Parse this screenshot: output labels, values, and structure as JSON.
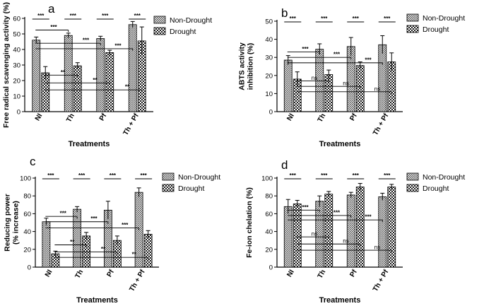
{
  "chart_data": [
    {
      "panel": "a",
      "type": "bar",
      "ylabel": "Free radical scavenging activity (%)",
      "xlabel": "Treatments",
      "ylim": [
        0,
        60
      ],
      "yticks": [
        0,
        10,
        20,
        30,
        40,
        50,
        60
      ],
      "categories": [
        "NI",
        "Th",
        "Pf",
        "Th + Pf"
      ],
      "series": [
        {
          "name": "Non-Drought",
          "values": [
            46,
            49,
            47,
            56
          ],
          "errors": [
            2,
            1.5,
            1.5,
            2
          ]
        },
        {
          "name": "Drought",
          "values": [
            25,
            29.5,
            38,
            45.5
          ],
          "errors": [
            4,
            2,
            1.5,
            9
          ]
        }
      ],
      "legend": [
        "Non-Drought",
        "Drought"
      ],
      "pair_sig": [
        "***",
        "***",
        "***",
        "***"
      ],
      "comparisons": [
        {
          "from": 0,
          "series": 0,
          "to": 1,
          "level": 52.5,
          "label": "***"
        },
        {
          "from": 0,
          "series": 0,
          "to": 2,
          "level": 44,
          "label": "***"
        },
        {
          "from": 0,
          "series": 0,
          "to": 3,
          "level": 40.5,
          "label": "***"
        },
        {
          "from": 0,
          "series": 1,
          "to": 1,
          "level": 23.5,
          "label": "**"
        },
        {
          "from": 0,
          "series": 1,
          "to": 2,
          "level": 18.5,
          "label": "**"
        },
        {
          "from": 0,
          "series": 1,
          "to": 3,
          "level": 14,
          "label": "**"
        }
      ]
    },
    {
      "panel": "b",
      "type": "bar",
      "ylabel": "ABTS activity inhibition (%)",
      "xlabel": "Treatments",
      "ylim": [
        0,
        50
      ],
      "yticks": [
        0,
        10,
        20,
        30,
        40,
        50
      ],
      "categories": [
        "NI",
        "Th",
        "Pf",
        "Th + Pf"
      ],
      "series": [
        {
          "name": "Non-Drought",
          "values": [
            28.5,
            34.5,
            36,
            37
          ],
          "errors": [
            2.5,
            3,
            5,
            5
          ]
        },
        {
          "name": "Drought",
          "values": [
            18,
            20.5,
            25.5,
            27.5
          ],
          "errors": [
            4,
            2.5,
            2,
            5
          ]
        }
      ],
      "legend": [
        "Non-Drought",
        "Drought"
      ],
      "pair_sig": [
        "***",
        "***",
        "***",
        "***"
      ],
      "comparisons": [
        {
          "from": 0,
          "series": 0,
          "to": 1,
          "level": 33,
          "label": "***"
        },
        {
          "from": 0,
          "series": 0,
          "to": 2,
          "level": 30,
          "label": "***"
        },
        {
          "from": 0,
          "series": 0,
          "to": 3,
          "level": 27,
          "label": "***"
        },
        {
          "from": 0,
          "series": 1,
          "to": 1,
          "level": 17,
          "label": "ns"
        },
        {
          "from": 0,
          "series": 1,
          "to": 2,
          "level": 14,
          "label": "ns"
        },
        {
          "from": 0,
          "series": 1,
          "to": 3,
          "level": 11,
          "label": "ns"
        }
      ]
    },
    {
      "panel": "c",
      "type": "bar",
      "ylabel": "Reducing power (% increase)",
      "xlabel": "Treatments",
      "ylim": [
        0,
        100
      ],
      "yticks": [
        0,
        20,
        40,
        60,
        80,
        100
      ],
      "categories": [
        "NI",
        "Th",
        "Pf",
        "Th + Pf"
      ],
      "series": [
        {
          "name": "Non-Drought",
          "values": [
            51,
            65,
            64,
            84
          ],
          "errors": [
            4,
            3,
            10,
            5
          ]
        },
        {
          "name": "Drought",
          "values": [
            15,
            35,
            30,
            37
          ],
          "errors": [
            3,
            4,
            5,
            4
          ]
        }
      ],
      "legend": [
        "Non-Drought",
        "Drought"
      ],
      "pair_sig": [
        "***",
        "***",
        "***",
        "***"
      ],
      "comparisons": [
        {
          "from": 0,
          "series": 0,
          "to": 1,
          "level": 57,
          "label": "***"
        },
        {
          "from": 0,
          "series": 0,
          "to": 2,
          "level": 51,
          "label": "***"
        },
        {
          "from": 0,
          "series": 0,
          "to": 3,
          "level": 44,
          "label": "***"
        },
        {
          "from": 0,
          "series": 1,
          "to": 1,
          "level": 25,
          "label": "**"
        },
        {
          "from": 0,
          "series": 1,
          "to": 2,
          "level": 17,
          "label": "**"
        },
        {
          "from": 0,
          "series": 1,
          "to": 3,
          "level": 11,
          "label": "**"
        }
      ]
    },
    {
      "panel": "d",
      "type": "bar",
      "ylabel": "Fe-ion chelation (%)",
      "xlabel": "Treatments",
      "ylim": [
        0,
        100
      ],
      "yticks": [
        0,
        20,
        40,
        60,
        80,
        100
      ],
      "categories": [
        "NI",
        "Th",
        "Pf",
        "Th + Pf"
      ],
      "series": [
        {
          "name": "Non-Drought",
          "values": [
            68,
            74,
            81,
            79
          ],
          "errors": [
            8,
            6,
            3,
            4
          ]
        },
        {
          "name": "Drought",
          "values": [
            71,
            82,
            90,
            90
          ],
          "errors": [
            4,
            3,
            4,
            3
          ]
        }
      ],
      "legend": [
        "Non-Drought",
        "Drought"
      ],
      "pair_sig": [
        "***",
        "***",
        "***",
        "***"
      ],
      "comparisons": [
        {
          "from": 0,
          "series": 0,
          "to": 1,
          "level": 64,
          "label": "***"
        },
        {
          "from": 0,
          "series": 0,
          "to": 2,
          "level": 58,
          "label": "***"
        },
        {
          "from": 0,
          "series": 0,
          "to": 3,
          "level": 53,
          "label": "***"
        },
        {
          "from": 0,
          "series": 1,
          "to": 1,
          "level": 34,
          "label": "ns"
        },
        {
          "from": 0,
          "series": 1,
          "to": 2,
          "level": 26,
          "label": "ns"
        },
        {
          "from": 0,
          "series": 1,
          "to": 3,
          "level": 19,
          "label": "ns"
        }
      ]
    }
  ]
}
